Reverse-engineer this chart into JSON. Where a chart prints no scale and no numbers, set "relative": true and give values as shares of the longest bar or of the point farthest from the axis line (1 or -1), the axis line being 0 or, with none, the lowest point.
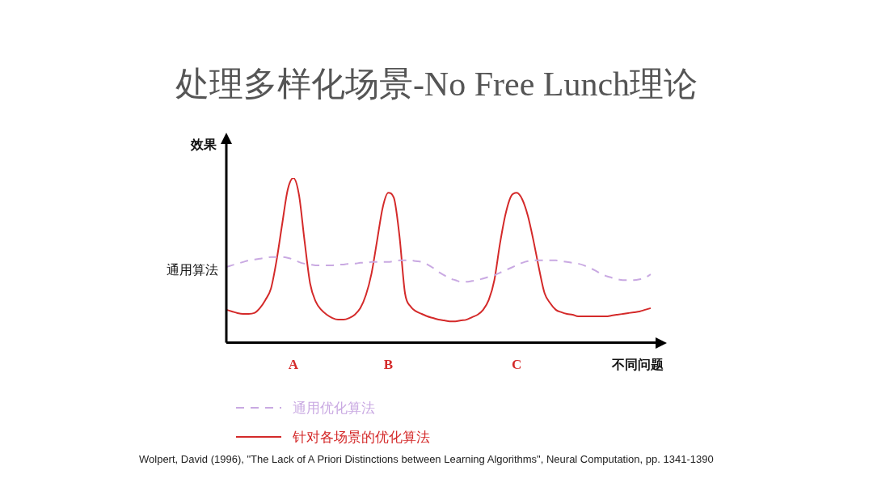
{
  "chart_data": {
    "type": "line",
    "title": "处理多样化场景-No Free Lunch理论",
    "xlabel": "不同问题",
    "ylabel": "效果",
    "relative": true,
    "legend": "bottom",
    "marker": "none",
    "categories": [
      null,
      null,
      null,
      null,
      null,
      null,
      null,
      null,
      null,
      null,
      null,
      null,
      "A",
      null,
      null,
      null,
      null,
      null,
      null,
      null,
      null,
      null,
      null,
      null,
      null,
      null,
      null,
      null,
      null,
      "B",
      null,
      null,
      null,
      null,
      null,
      null,
      null,
      null,
      null,
      null,
      null,
      null,
      null,
      null,
      null,
      null,
      null,
      null,
      null,
      null,
      null,
      null,
      "C",
      null,
      null,
      null,
      null,
      null,
      null,
      null,
      null,
      null,
      null,
      null,
      null,
      null,
      null,
      null,
      null,
      null,
      null,
      null,
      null,
      null,
      null,
      null,
      null
    ],
    "series": [
      {
        "name": "通用优化算法",
        "color": "#c9a9e2",
        "line_style": "dashed",
        "values": [
          0.46,
          0.47,
          0.48,
          0.49,
          0.5,
          0.505,
          0.51,
          0.515,
          0.52,
          0.52,
          0.52,
          0.515,
          0.505,
          0.49,
          0.48,
          0.475,
          0.47,
          0.47,
          0.47,
          0.47,
          0.475,
          0.475,
          0.48,
          0.48,
          0.485,
          0.485,
          0.49,
          0.49,
          0.49,
          0.49,
          0.495,
          0.5,
          0.5,
          0.5,
          0.495,
          0.49,
          0.475,
          0.455,
          0.43,
          0.41,
          0.39,
          0.38,
          0.37,
          0.37,
          0.375,
          0.38,
          0.39,
          0.4,
          0.41,
          0.425,
          0.44,
          0.455,
          0.47,
          0.485,
          0.495,
          0.5,
          0.5,
          0.5,
          0.5,
          0.5,
          0.495,
          0.49,
          0.485,
          0.48,
          0.47,
          0.455,
          0.44,
          0.42,
          0.405,
          0.395,
          0.385,
          0.38,
          0.38,
          0.38,
          0.385,
          0.395,
          0.415
        ]
      },
      {
        "name": "针对各场景的优化算法",
        "color": "#d42a2a",
        "line_style": "solid",
        "values": [
          0.2,
          0.19,
          0.18,
          0.175,
          0.175,
          0.18,
          0.21,
          0.26,
          0.33,
          0.5,
          0.72,
          0.93,
          1.0,
          0.9,
          0.62,
          0.36,
          0.25,
          0.2,
          0.17,
          0.15,
          0.14,
          0.14,
          0.15,
          0.17,
          0.21,
          0.29,
          0.42,
          0.62,
          0.82,
          0.91,
          0.88,
          0.65,
          0.3,
          0.22,
          0.19,
          0.175,
          0.16,
          0.15,
          0.14,
          0.135,
          0.13,
          0.13,
          0.135,
          0.14,
          0.155,
          0.17,
          0.2,
          0.26,
          0.38,
          0.6,
          0.78,
          0.89,
          0.91,
          0.87,
          0.77,
          0.62,
          0.45,
          0.3,
          0.24,
          0.2,
          0.185,
          0.175,
          0.17,
          0.16,
          0.16,
          0.16,
          0.16,
          0.16,
          0.16,
          0.165,
          0.17,
          0.175,
          0.18,
          0.185,
          0.19,
          0.2,
          0.21
        ]
      }
    ],
    "annotations": [
      "通用算法",
      "Wolpert, David (1996), \"The Lack of A Priori Distinctions between Learning Algorithms\", Neural Computation, pp. 1341-1390"
    ]
  }
}
